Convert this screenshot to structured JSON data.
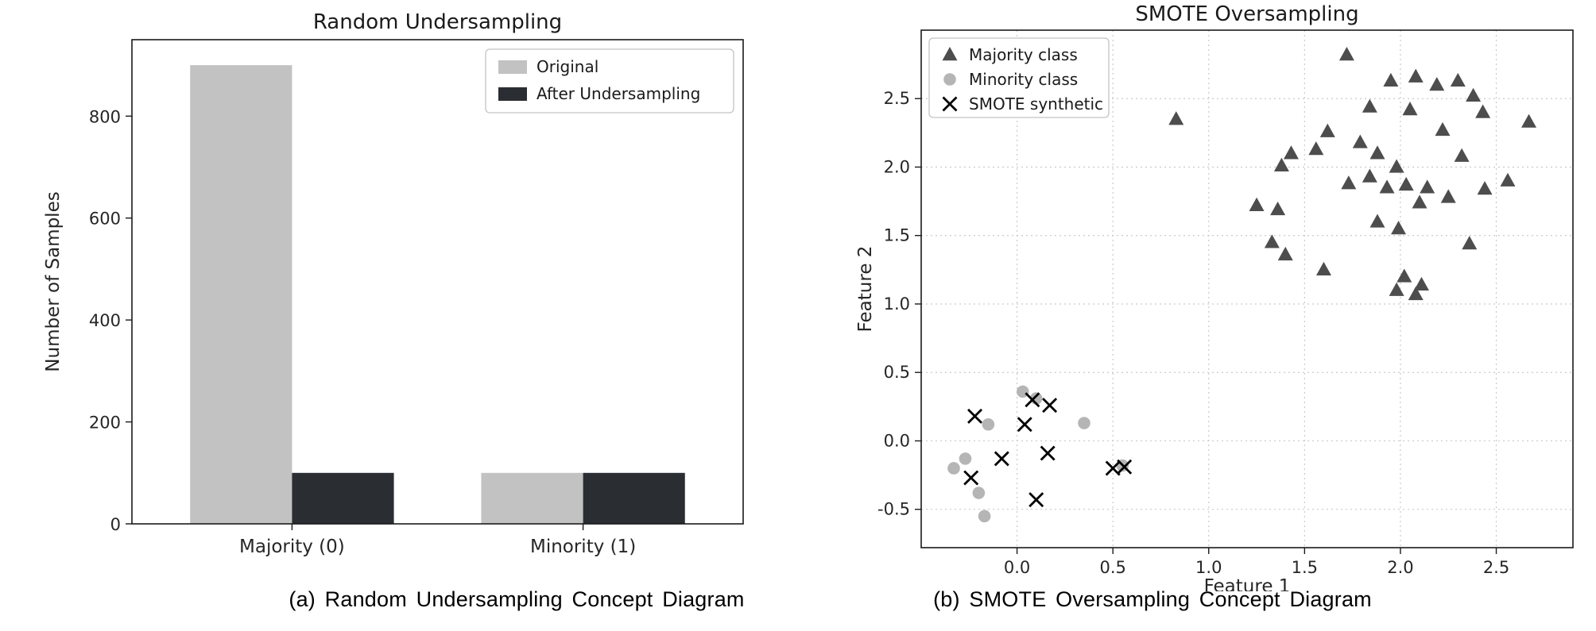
{
  "figure_a": {
    "caption": "(a) Random Undersampling Concept Diagram"
  },
  "figure_b": {
    "caption": "(b) SMOTE Oversampling Concept Diagram"
  },
  "colors": {
    "original_bar": "#c2c2c2",
    "after_bar": "#2a2d32",
    "majority_marker": "#4d4d4d",
    "minority_marker": "#b5b5b5",
    "smote_marker": "#000000"
  },
  "chart_data": [
    {
      "type": "bar",
      "title": "Random Undersampling",
      "ylabel": "Number of Samples",
      "categories": [
        "Majority (0)",
        "Minority (1)"
      ],
      "series": [
        {
          "name": "Original",
          "color": "#c2c2c2",
          "values": [
            900,
            100
          ]
        },
        {
          "name": "After Undersampling",
          "color": "#2a2d32",
          "values": [
            100,
            100
          ]
        }
      ],
      "yticks": [
        0,
        200,
        400,
        600,
        800
      ],
      "ytick_labels": [
        "0",
        "200",
        "400",
        "600",
        "800"
      ],
      "ylim": [
        0,
        950
      ],
      "grid": false,
      "legend_position": "upper right"
    },
    {
      "type": "scatter",
      "title": "SMOTE Oversampling",
      "xlabel": "Feature 1",
      "ylabel": "Feature 2",
      "xticks": [
        0.0,
        0.5,
        1.0,
        1.5,
        2.0,
        2.5
      ],
      "xtick_labels": [
        "0.0",
        "0.5",
        "1.0",
        "1.5",
        "2.0",
        "2.5"
      ],
      "yticks": [
        -0.5,
        0.0,
        0.5,
        1.0,
        1.5,
        2.0,
        2.5
      ],
      "ytick_labels": [
        "-0.5",
        "0.0",
        "0.5",
        "1.0",
        "1.5",
        "2.0",
        "2.5"
      ],
      "xlim": [
        -0.5,
        2.9
      ],
      "ylim": [
        -0.78,
        3.0
      ],
      "grid": true,
      "legend_position": "upper left",
      "series": [
        {
          "name": "Majority class",
          "marker": "triangle",
          "color": "#4d4d4d",
          "points": [
            [
              0.83,
              2.35
            ],
            [
              1.72,
              2.82
            ],
            [
              1.95,
              2.63
            ],
            [
              2.08,
              2.66
            ],
            [
              2.19,
              2.6
            ],
            [
              2.3,
              2.63
            ],
            [
              2.38,
              2.52
            ],
            [
              1.84,
              2.44
            ],
            [
              2.05,
              2.42
            ],
            [
              2.43,
              2.4
            ],
            [
              2.67,
              2.33
            ],
            [
              1.62,
              2.26
            ],
            [
              1.79,
              2.18
            ],
            [
              2.22,
              2.27
            ],
            [
              1.43,
              2.1
            ],
            [
              1.56,
              2.13
            ],
            [
              1.88,
              2.1
            ],
            [
              2.32,
              2.08
            ],
            [
              1.38,
              2.01
            ],
            [
              1.98,
              2.0
            ],
            [
              1.73,
              1.88
            ],
            [
              1.84,
              1.93
            ],
            [
              1.93,
              1.85
            ],
            [
              2.03,
              1.87
            ],
            [
              2.14,
              1.85
            ],
            [
              2.56,
              1.9
            ],
            [
              2.44,
              1.84
            ],
            [
              1.25,
              1.72
            ],
            [
              1.36,
              1.69
            ],
            [
              2.1,
              1.74
            ],
            [
              2.25,
              1.78
            ],
            [
              1.88,
              1.6
            ],
            [
              1.99,
              1.55
            ],
            [
              1.33,
              1.45
            ],
            [
              1.4,
              1.36
            ],
            [
              2.36,
              1.44
            ],
            [
              1.6,
              1.25
            ],
            [
              2.02,
              1.2
            ],
            [
              2.11,
              1.14
            ],
            [
              1.98,
              1.1
            ],
            [
              2.08,
              1.07
            ]
          ]
        },
        {
          "name": "Minority class",
          "marker": "circle",
          "color": "#b5b5b5",
          "points": [
            [
              -0.27,
              -0.13
            ],
            [
              -0.33,
              -0.2
            ],
            [
              0.03,
              0.36
            ],
            [
              0.1,
              0.31
            ],
            [
              -0.15,
              0.12
            ],
            [
              0.35,
              0.13
            ],
            [
              -0.2,
              -0.38
            ],
            [
              -0.17,
              -0.55
            ],
            [
              0.55,
              -0.18
            ]
          ]
        },
        {
          "name": "SMOTE synthetic",
          "marker": "x",
          "color": "#000000",
          "points": [
            [
              -0.22,
              0.18
            ],
            [
              0.08,
              0.3
            ],
            [
              0.17,
              0.26
            ],
            [
              0.04,
              0.12
            ],
            [
              -0.08,
              -0.13
            ],
            [
              0.16,
              -0.09
            ],
            [
              -0.24,
              -0.27
            ],
            [
              0.1,
              -0.43
            ],
            [
              0.5,
              -0.2
            ],
            [
              0.56,
              -0.19
            ]
          ]
        }
      ]
    }
  ]
}
